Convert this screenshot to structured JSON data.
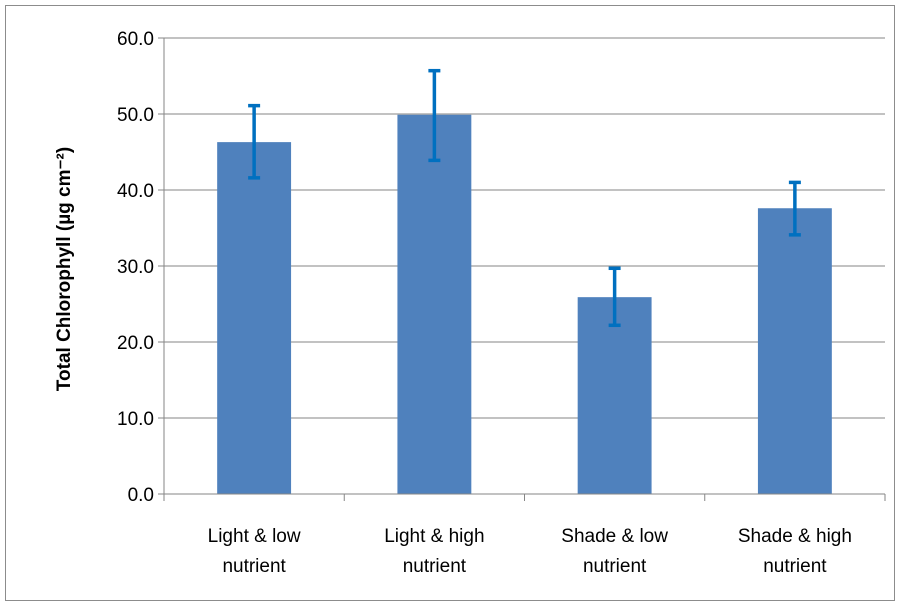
{
  "chart_data": {
    "type": "bar",
    "title": "",
    "xlabel": "",
    "ylabel": "Total Chlorophyll (µg cm⁻²)",
    "categories": [
      [
        "Light & low",
        "nutrient"
      ],
      [
        "Light & high",
        "nutrient"
      ],
      [
        "Shade & low",
        "nutrient"
      ],
      [
        "Shade & high",
        "nutrient"
      ]
    ],
    "values": [
      46.3,
      49.9,
      25.9,
      37.6
    ],
    "error_low": [
      41.6,
      43.9,
      22.2,
      34.1
    ],
    "error_high": [
      51.1,
      55.7,
      29.7,
      41.0
    ],
    "ylim": [
      0,
      60
    ],
    "yticks": [
      "0.0",
      "10.0",
      "20.0",
      "30.0",
      "40.0",
      "50.0",
      "60.0"
    ],
    "grid": true,
    "legend": "none",
    "colors": {
      "bar": "#4f81bd",
      "error_bar": "#0070c0",
      "grid": "#868686"
    }
  }
}
